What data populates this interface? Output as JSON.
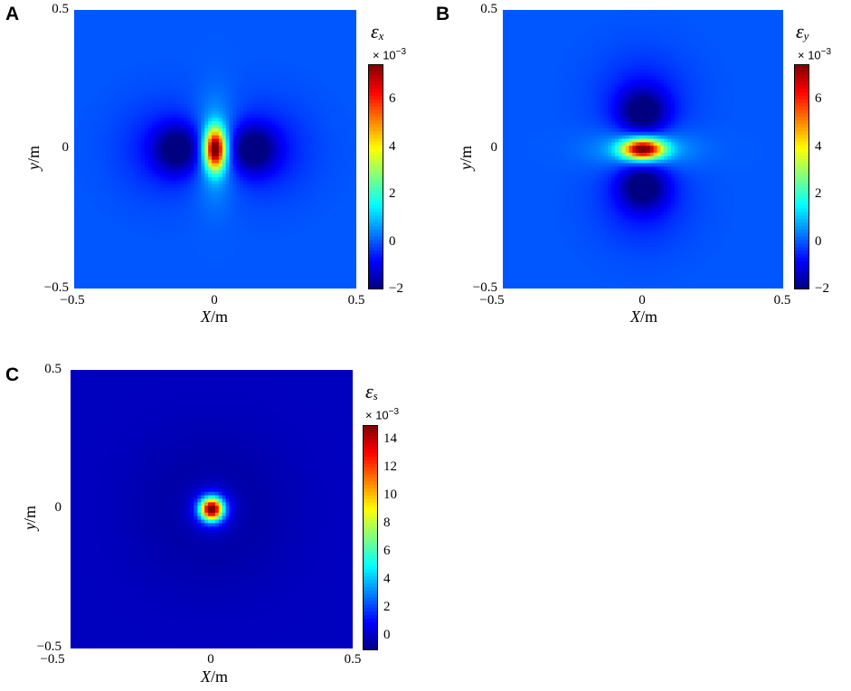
{
  "chart_data": [
    {
      "type": "heatmap",
      "panel_letter": "A",
      "field": "strain_x",
      "colorbar_title_main": "ε",
      "colorbar_title_sub": "x",
      "colorbar_multiplier_base": "× 10",
      "colorbar_multiplier_exp": "−3",
      "xlabel_var": "X",
      "xlabel_unit": "/m",
      "ylabel_var": "y",
      "ylabel_unit": "/m",
      "xlim": [
        -0.5,
        0.5
      ],
      "ylim": [
        -0.5,
        0.5
      ],
      "x_ticks": [
        "−0.5",
        "0",
        "0.5"
      ],
      "y_ticks": [
        "0.5",
        "0",
        "−0.5"
      ],
      "colorbar_range": [
        -2,
        7.5
      ],
      "colorbar_ticks": [
        "6",
        "4",
        "2",
        "0",
        "−2"
      ],
      "colorbar_tick_values": [
        6,
        4,
        2,
        0,
        -2
      ],
      "colormap": "jet",
      "peak_value": 7.5,
      "peak_location": [
        0,
        0
      ],
      "min_value": -2,
      "min_locations": [
        [
          -0.13,
          0
        ],
        [
          0.13,
          0
        ]
      ],
      "background_value": 0
    },
    {
      "type": "heatmap",
      "panel_letter": "B",
      "field": "strain_y",
      "colorbar_title_main": "ε",
      "colorbar_title_sub": "y",
      "colorbar_multiplier_base": "× 10",
      "colorbar_multiplier_exp": "−3",
      "xlabel_var": "X",
      "xlabel_unit": "/m",
      "ylabel_var": "y",
      "ylabel_unit": "/m",
      "xlim": [
        -0.5,
        0.5
      ],
      "ylim": [
        -0.5,
        0.5
      ],
      "x_ticks": [
        "−0.5",
        "0",
        "0.5"
      ],
      "y_ticks": [
        "0.5",
        "0",
        "−0.5"
      ],
      "colorbar_range": [
        -2,
        7.5
      ],
      "colorbar_ticks": [
        "6",
        "4",
        "2",
        "0",
        "−2"
      ],
      "colorbar_tick_values": [
        6,
        4,
        2,
        0,
        -2
      ],
      "colormap": "jet",
      "peak_value": 7.5,
      "peak_location": [
        0,
        0
      ],
      "min_value": -2,
      "min_locations": [
        [
          0,
          0.13
        ],
        [
          0,
          -0.13
        ]
      ],
      "background_value": 0
    },
    {
      "type": "heatmap",
      "panel_letter": "C",
      "field": "strain_s",
      "colorbar_title_main": "ε",
      "colorbar_title_sub": "s",
      "colorbar_multiplier_base": "× 10",
      "colorbar_multiplier_exp": "−3",
      "xlabel_var": "X",
      "xlabel_unit": "/m",
      "ylabel_var": "y",
      "ylabel_unit": "/m",
      "xlim": [
        -0.5,
        0.5
      ],
      "ylim": [
        -0.5,
        0.5
      ],
      "x_ticks": [
        "−0.5",
        "0",
        "0.5"
      ],
      "y_ticks": [
        "0.5",
        "0",
        "−0.5"
      ],
      "colorbar_range": [
        -1,
        15
      ],
      "colorbar_ticks": [
        "14",
        "12",
        "10",
        "8",
        "6",
        "4",
        "2",
        "0"
      ],
      "colorbar_tick_values": [
        14,
        12,
        10,
        8,
        6,
        4,
        2,
        0
      ],
      "colormap": "jet",
      "peak_value": 15,
      "peak_location": [
        0,
        0
      ],
      "background_value": 0
    }
  ]
}
